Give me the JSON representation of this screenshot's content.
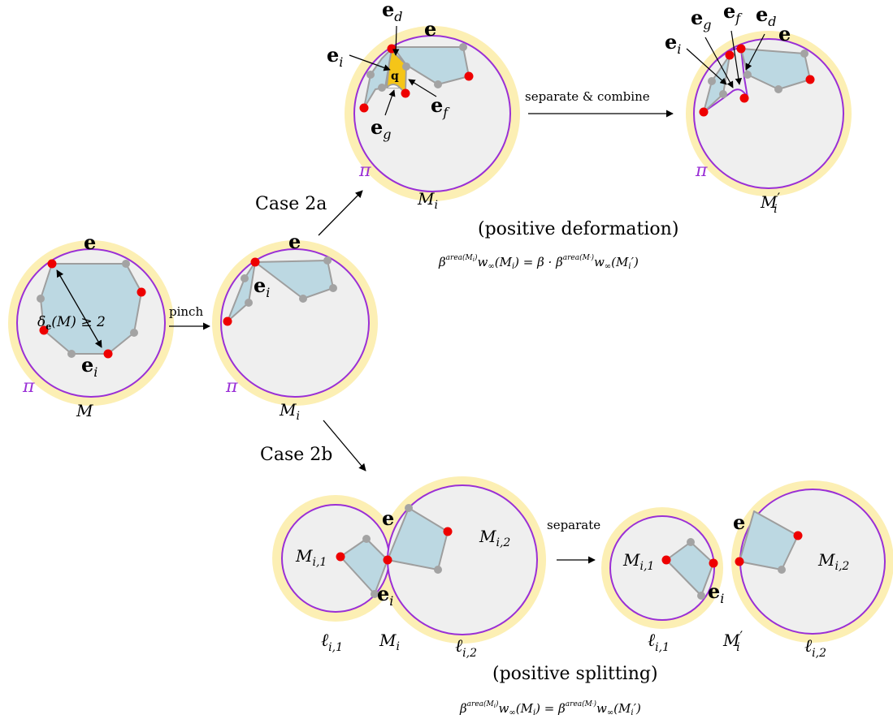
{
  "colors": {
    "halo": "#fcefb4",
    "disk": "#efefef",
    "boundary": "#9a2fd6",
    "polygon_fill": "#bcd8e2",
    "polygon_edge": "#9e9e9e",
    "red_vertex": "#ee0000",
    "gray_vertex": "#a3a3a3",
    "face_q": "#f5c518",
    "pi_label": "#9a2fd6"
  },
  "labels": {
    "e": "e",
    "e_i": "e",
    "e_d": "e",
    "e_f": "e",
    "e_g": "e",
    "q": "q",
    "sub_i": "i",
    "sub_d": "d",
    "sub_f": "f",
    "sub_g": "g",
    "sub_e": "e",
    "pi": "π",
    "M": "M",
    "M_i": "M",
    "M_i_prime": "M",
    "prime": "′",
    "M_i1": "M",
    "M_i2": "M",
    "sub_i1": "i,1",
    "sub_i2": "i,2",
    "ell": "ℓ",
    "delta": "δ",
    "delta_rest": "(M) ≥ 2"
  },
  "arrows": {
    "pinch": "pinch",
    "case_2a": "Case 2a",
    "case_2b": "Case 2b",
    "separate_combine": "separate & combine",
    "separate": "separate"
  },
  "captions": {
    "positive_deformation": "(positive deformation)",
    "positive_splitting": "(positive splitting)",
    "beta": "β",
    "area_Mi": "area(M",
    "area_close": ")",
    "w": "w",
    "inf": "∞",
    "eq_deform_mid": "(M",
    "eq_deform_rhs": ") = β · β",
    "eq_split_rhs": ") = β"
  }
}
